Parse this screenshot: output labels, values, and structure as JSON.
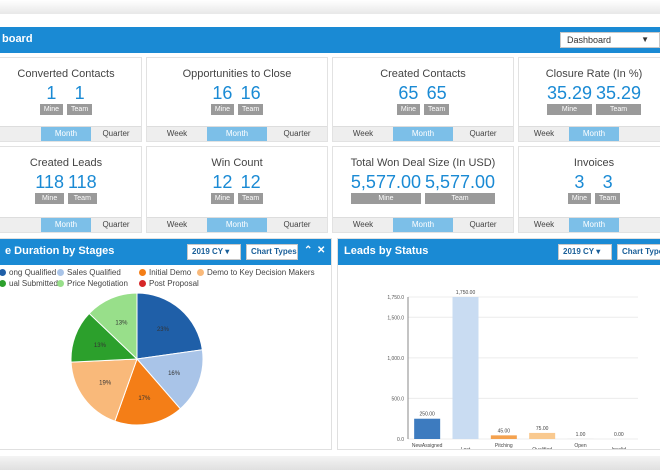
{
  "header": {
    "title": "board",
    "dashboard_select": "Dashboard"
  },
  "cards": [
    {
      "title": "Converted Contacts",
      "mine": "1",
      "team": "1",
      "tabs": [
        "",
        "Month",
        "Quarter"
      ]
    },
    {
      "title": "Opportunities to Close",
      "mine": "16",
      "team": "16",
      "tabs": [
        "Week",
        "Month",
        "Quarter"
      ]
    },
    {
      "title": "Created Contacts",
      "mine": "65",
      "team": "65",
      "tabs": [
        "Week",
        "Month",
        "Quarter"
      ]
    },
    {
      "title": "Closure Rate (In %)",
      "mine": "35.29",
      "team": "35.29",
      "tabs": [
        "Week",
        "Month",
        ""
      ]
    },
    {
      "title": "Created Leads",
      "mine": "118",
      "team": "118",
      "tabs": [
        "",
        "Month",
        "Quarter"
      ]
    },
    {
      "title": "Win Count",
      "mine": "12",
      "team": "12",
      "tabs": [
        "Week",
        "Month",
        "Quarter"
      ]
    },
    {
      "title": "Total Won Deal Size (In USD)",
      "mine": "5,577.00",
      "team": "5,577.00",
      "tabs": [
        "Week",
        "Month",
        "Quarter"
      ]
    },
    {
      "title": "Invoices",
      "mine": "3",
      "team": "3",
      "tabs": [
        "Week",
        "Month",
        ""
      ]
    }
  ],
  "labels": {
    "mine": "Mine",
    "team": "Team"
  },
  "left_panel": {
    "title": "e Duration by Stages",
    "year_select": "2019 CY",
    "chart_types": "Chart Types",
    "collapse_icon": "chevron-up",
    "close_icon": "close"
  },
  "right_panel": {
    "title": "Leads by Status",
    "year_select": "2019 CY",
    "chart_types": "Chart Types"
  },
  "colors": {
    "accent": "#1a8ad4",
    "tab_active": "#7cbfe8",
    "label_grey": "#9a9a9a"
  },
  "chart_data": [
    {
      "type": "pie",
      "legend": [
        {
          "label": "ong Qualified",
          "color": "#1f5fa8"
        },
        {
          "label": "Sales Qualified",
          "color": "#a9c4e8"
        },
        {
          "label": "Initial Demo",
          "color": "#f47e17"
        },
        {
          "label": "Demo to Key Decision Makers",
          "color": "#f9b97a"
        },
        {
          "label": "ual Submitted",
          "color": "#2ca02c"
        },
        {
          "label": "Price Negotiation",
          "color": "#98df8a"
        },
        {
          "label": "Post Proposal",
          "color": "#d62728"
        }
      ],
      "slices": [
        {
          "label": "ong Qualified",
          "value": 23,
          "text": "23%",
          "color": "#1f5fa8"
        },
        {
          "label": "Sales Qualified",
          "value": 16,
          "text": "16%",
          "color": "#a9c4e8"
        },
        {
          "label": "Initial Demo",
          "value": 17,
          "text": "17%",
          "color": "#f47e17"
        },
        {
          "label": "Demo to Key Decision Makers",
          "value": 19,
          "text": "19%",
          "color": "#f9b97a"
        },
        {
          "label": "ual Submitted",
          "value": 13,
          "text": "13%",
          "color": "#2ca02c"
        },
        {
          "label": "Price Negotiation",
          "value": 13,
          "text": "13%",
          "color": "#98df8a"
        }
      ]
    },
    {
      "type": "bar",
      "categories": [
        "NewAssigned",
        "Lost",
        "Pitching",
        "Qualified",
        "Open",
        "Invalid"
      ],
      "values": [
        250,
        1750,
        45,
        75,
        1,
        0
      ],
      "value_labels": [
        "250.00",
        "1,750.00",
        "45.00",
        "75.00",
        "1.00",
        "0.00"
      ],
      "colors": [
        "#3d7bbf",
        "#c9dcf2",
        "#f4a24f",
        "#f9c98f",
        "#cccccc",
        "#cccccc"
      ],
      "ylim": [
        0,
        1750
      ],
      "yticks": [
        0,
        500,
        1000,
        1500,
        1750
      ],
      "ytick_labels": [
        "0.0",
        "500.0",
        "1,000.0",
        "1,500.0",
        "1,750.0"
      ]
    }
  ]
}
